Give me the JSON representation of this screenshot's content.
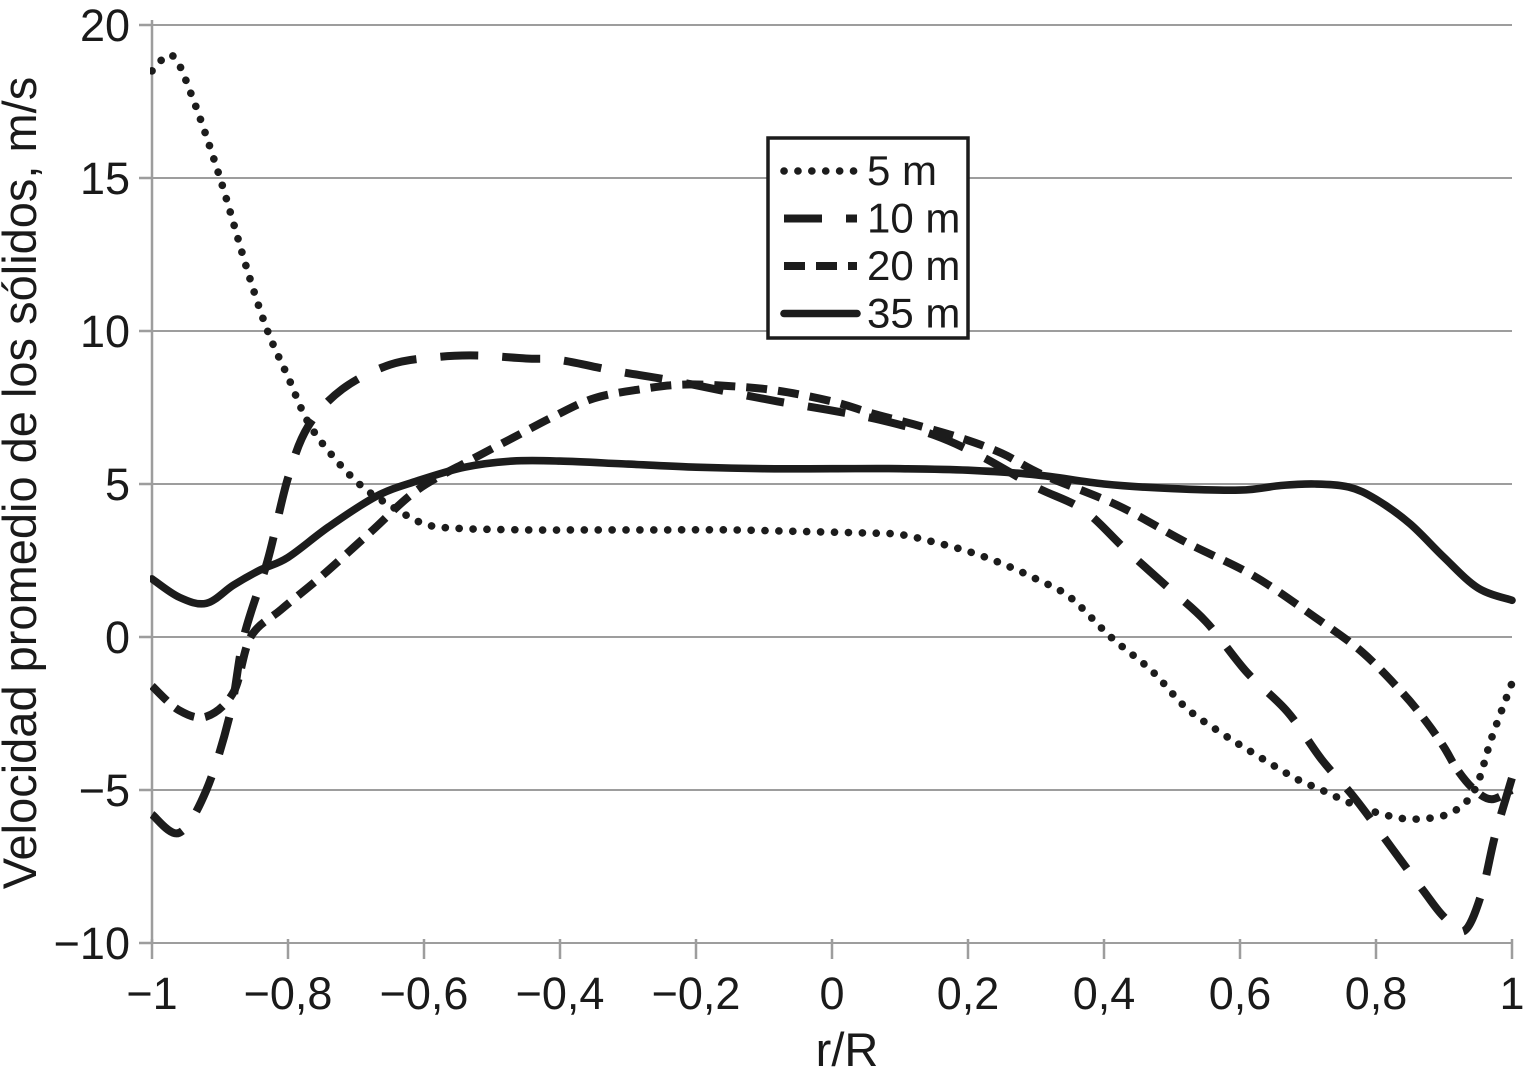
{
  "chart_data": {
    "type": "line",
    "title": "",
    "xlabel": "r/R",
    "ylabel": "Velocidad promedio de los sólidos, m/s",
    "xlim": [
      -1,
      1
    ],
    "ylim": [
      -10,
      20
    ],
    "grid": "horizontal-only",
    "decimal_separator": ",",
    "x_ticks": {
      "values": [
        -1,
        -0.8,
        -0.6,
        -0.4,
        -0.2,
        0,
        0.2,
        0.4,
        0.6,
        0.8,
        1
      ],
      "labels": [
        "−1",
        "−0,8",
        "−0,6",
        "−0,4",
        "−0,2",
        "0",
        "0,2",
        "0,4",
        "0,6",
        "0,8",
        "1"
      ]
    },
    "y_ticks": {
      "values": [
        20,
        15,
        10,
        5,
        0,
        -5,
        -10
      ],
      "labels": [
        "20",
        "15",
        "10",
        "5",
        "0",
        "−5",
        "−10"
      ]
    },
    "legend": {
      "position": "top-center",
      "entries": [
        {
          "label": "5 m",
          "style": "dotted"
        },
        {
          "label": "10 m",
          "style": "long-dash"
        },
        {
          "label": "20 m",
          "style": "dash"
        },
        {
          "label": "35 m",
          "style": "solid"
        }
      ]
    },
    "colors": {
      "curve": "#1c1c1c",
      "grid": "#9d9d9d",
      "text": "#1a1a1a",
      "background": "#ffffff"
    },
    "series": [
      {
        "name": "5 m",
        "style": "dotted",
        "x": [
          -1,
          -0.97,
          -0.94,
          -0.9,
          -0.86,
          -0.83,
          -0.8,
          -0.77,
          -0.73,
          -0.69,
          -0.65,
          -0.6,
          -0.55,
          -0.45,
          -0.35,
          -0.25,
          -0.15,
          -0.05,
          0.05,
          0.1,
          0.15,
          0.2,
          0.25,
          0.3,
          0.35,
          0.41,
          0.47,
          0.52,
          0.57,
          0.62,
          0.68,
          0.72,
          0.77,
          0.82,
          0.86,
          0.91,
          0.945,
          0.97,
          1
        ],
        "y": [
          18.5,
          19.0,
          17.6,
          15.0,
          12.0,
          10.0,
          8.5,
          7.0,
          5.8,
          4.9,
          4.3,
          3.7,
          3.55,
          3.5,
          3.5,
          3.5,
          3.5,
          3.45,
          3.4,
          3.35,
          3.1,
          2.8,
          2.4,
          1.9,
          1.3,
          0,
          -1.1,
          -2.3,
          -3.1,
          -3.8,
          -4.6,
          -5.0,
          -5.5,
          -5.85,
          -5.95,
          -5.75,
          -5.0,
          -3.3,
          -1.5
        ]
      },
      {
        "name": "10 m",
        "style": "long-dash",
        "x": [
          -1,
          -0.96,
          -0.92,
          -0.885,
          -0.865,
          -0.83,
          -0.8,
          -0.77,
          -0.72,
          -0.65,
          -0.58,
          -0.52,
          -0.45,
          -0.4,
          -0.32,
          -0.24,
          -0.15,
          -0.08,
          0,
          0.07,
          0.15,
          0.22,
          0.3,
          0.37,
          0.43,
          0.49,
          0.55,
          0.61,
          0.67,
          0.72,
          0.77,
          0.825,
          0.87,
          0.9,
          0.93,
          0.955,
          0.975,
          1
        ],
        "y": [
          -5.8,
          -6.4,
          -5.0,
          -2.5,
          0,
          2.5,
          5.2,
          6.9,
          8.1,
          8.9,
          9.15,
          9.2,
          9.1,
          9.05,
          8.7,
          8.4,
          8.0,
          7.7,
          7.4,
          7.1,
          6.6,
          5.9,
          4.9,
          4.15,
          2.9,
          1.7,
          0.5,
          -1.15,
          -2.45,
          -4.0,
          -5.3,
          -6.95,
          -8.3,
          -9.15,
          -9.6,
          -8.4,
          -6.5,
          -4.6
        ]
      },
      {
        "name": "20 m",
        "style": "dash",
        "x": [
          -1,
          -0.96,
          -0.92,
          -0.88,
          -0.855,
          -0.81,
          -0.75,
          -0.68,
          -0.61,
          -0.53,
          -0.47,
          -0.41,
          -0.35,
          -0.28,
          -0.22,
          -0.15,
          -0.08,
          0,
          0.06,
          0.12,
          0.19,
          0.25,
          0.31,
          0.42,
          0.52,
          0.62,
          0.71,
          0.78,
          0.84,
          0.875,
          0.9,
          0.92,
          0.945,
          0.97,
          1
        ],
        "y": [
          -1.6,
          -2.4,
          -2.6,
          -1.8,
          0,
          0.9,
          2.0,
          3.4,
          4.8,
          5.8,
          6.5,
          7.2,
          7.8,
          8.1,
          8.25,
          8.2,
          8.05,
          7.7,
          7.3,
          6.95,
          6.5,
          6.0,
          5.3,
          4.3,
          3.1,
          2.0,
          0.65,
          -0.5,
          -1.85,
          -2.8,
          -3.6,
          -4.35,
          -5.0,
          -5.3,
          -5.0
        ]
      },
      {
        "name": "35 m",
        "style": "solid",
        "x": [
          -1,
          -0.96,
          -0.92,
          -0.88,
          -0.84,
          -0.8,
          -0.74,
          -0.67,
          -0.61,
          -0.54,
          -0.47,
          -0.4,
          -0.3,
          -0.2,
          -0.1,
          0,
          0.1,
          0.2,
          0.3,
          0.4,
          0.5,
          0.6,
          0.66,
          0.71,
          0.76,
          0.8,
          0.85,
          0.9,
          0.95,
          1
        ],
        "y": [
          1.9,
          1.3,
          1.1,
          1.7,
          2.2,
          2.6,
          3.6,
          4.6,
          5.1,
          5.55,
          5.75,
          5.75,
          5.65,
          5.55,
          5.5,
          5.5,
          5.5,
          5.45,
          5.3,
          5.0,
          4.85,
          4.8,
          4.95,
          5.0,
          4.9,
          4.5,
          3.7,
          2.6,
          1.6,
          1.2
        ]
      }
    ]
  }
}
